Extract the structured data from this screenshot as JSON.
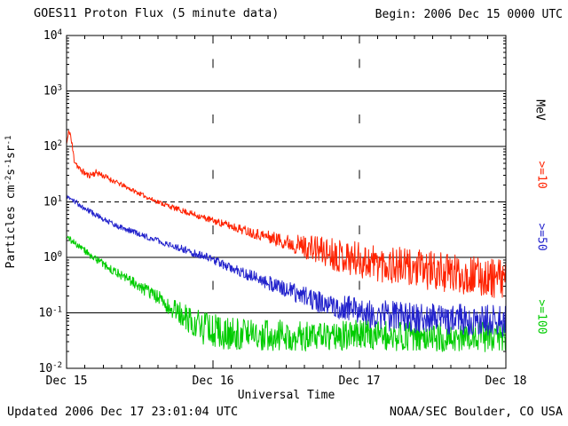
{
  "header": {
    "title": "GOES11 Proton Flux (5 minute data)",
    "begin_label": "Begin: 2006 Dec 15 0000 UTC"
  },
  "footer": {
    "updated": "Updated 2006 Dec 17 23:01:04 UTC",
    "source": "NOAA/SEC Boulder, CO USA"
  },
  "chart_data": {
    "type": "line",
    "title": "GOES11 Proton Flux (5 minute data)",
    "begin": "2006 Dec 15 0000 UTC",
    "xlabel": "Universal Time",
    "ylabel": "Particles cm-2 s-1 sr-1",
    "ylabel_parts": [
      [
        "t",
        "Particles cm"
      ],
      [
        "s",
        "-2"
      ],
      [
        "t",
        "s"
      ],
      [
        "s",
        "-1"
      ],
      [
        "t",
        "sr"
      ],
      [
        "s",
        "-1"
      ]
    ],
    "y_scale": "log",
    "ylim_exp": [
      -2,
      4
    ],
    "x_tick_labels": [
      "Dec 15",
      "Dec 16",
      "Dec 17",
      "Dec 18"
    ],
    "x_range_hours": [
      0,
      72
    ],
    "sample_minutes": 5,
    "solid_grid_exponents": [
      3,
      2,
      0,
      -1
    ],
    "dashed_grid_exponents": [
      1
    ],
    "right_axis_label": "MeV",
    "axis_color": "#000000",
    "background": "#ffffff",
    "legend_position": "right-rotated",
    "grid": "horizontal-decades",
    "series": [
      {
        "name": ">=10",
        "unit": "MeV",
        "color": "#ff2200",
        "seed": 11,
        "anchors": [
          [
            0,
            110,
            0.1
          ],
          [
            0.5,
            200,
            0.1
          ],
          [
            1.2,
            62,
            0.1
          ],
          [
            2,
            40,
            0.06
          ],
          [
            3.5,
            30,
            0.06
          ],
          [
            5,
            34,
            0.06
          ],
          [
            7,
            26,
            0.05
          ],
          [
            10,
            18,
            0.04
          ],
          [
            14,
            11,
            0.04
          ],
          [
            18,
            7.5,
            0.05
          ],
          [
            24,
            4.6,
            0.06
          ],
          [
            30,
            2.9,
            0.09
          ],
          [
            36,
            1.9,
            0.14
          ],
          [
            42,
            1.3,
            0.28
          ],
          [
            48,
            0.9,
            0.33
          ],
          [
            56,
            0.65,
            0.35
          ],
          [
            64,
            0.5,
            0.35
          ],
          [
            72,
            0.4,
            0.35
          ]
        ]
      },
      {
        "name": ">=50",
        "unit": "MeV",
        "color": "#2222cc",
        "seed": 57,
        "anchors": [
          [
            0,
            13,
            0.05
          ],
          [
            2,
            9,
            0.05
          ],
          [
            4,
            6.5,
            0.05
          ],
          [
            8,
            3.8,
            0.05
          ],
          [
            12,
            2.6,
            0.05
          ],
          [
            16,
            1.8,
            0.06
          ],
          [
            20,
            1.3,
            0.07
          ],
          [
            24,
            0.92,
            0.08
          ],
          [
            30,
            0.47,
            0.11
          ],
          [
            36,
            0.26,
            0.15
          ],
          [
            42,
            0.15,
            0.2
          ],
          [
            48,
            0.105,
            0.26
          ],
          [
            54,
            0.085,
            0.28
          ],
          [
            60,
            0.08,
            0.28
          ],
          [
            72,
            0.07,
            0.28
          ]
        ]
      },
      {
        "name": ">=100",
        "unit": "MeV",
        "color": "#00cc00",
        "seed": 93,
        "anchors": [
          [
            0,
            2.3,
            0.06
          ],
          [
            2,
            1.6,
            0.06
          ],
          [
            4,
            1.05,
            0.07
          ],
          [
            8,
            0.55,
            0.08
          ],
          [
            12,
            0.3,
            0.1
          ],
          [
            16,
            0.155,
            0.15
          ],
          [
            19,
            0.09,
            0.22
          ],
          [
            22,
            0.055,
            0.3
          ],
          [
            26,
            0.042,
            0.3
          ],
          [
            32,
            0.04,
            0.28
          ],
          [
            40,
            0.038,
            0.27
          ],
          [
            48,
            0.04,
            0.27
          ],
          [
            56,
            0.038,
            0.27
          ],
          [
            72,
            0.036,
            0.27
          ]
        ]
      }
    ]
  }
}
